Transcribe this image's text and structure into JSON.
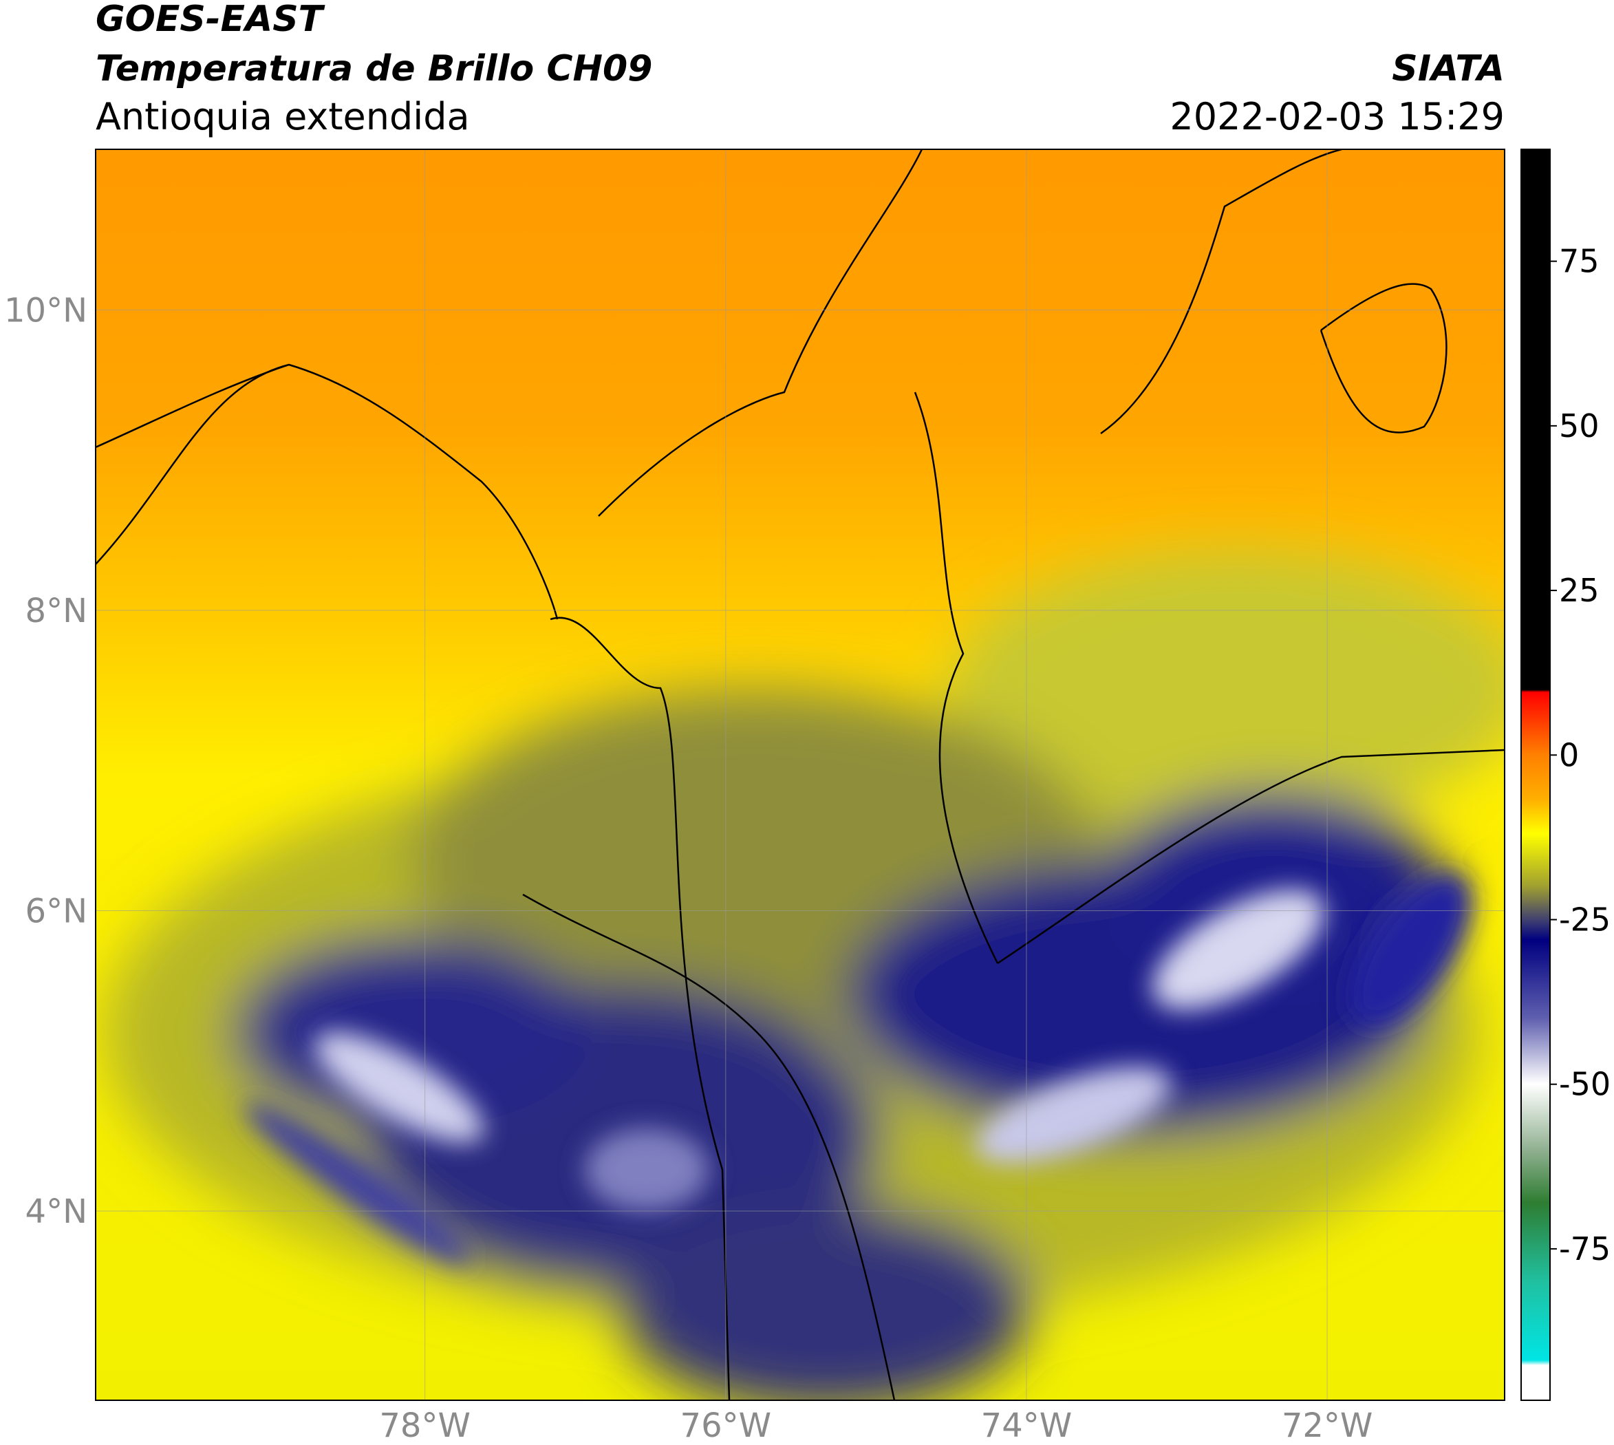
{
  "header": {
    "title": "GOES-EAST",
    "subtitle": "Temperatura de Brillo CH09",
    "region": "Antioquia extendida",
    "source": "SIATA",
    "datetime": "2022-02-03 15:29"
  },
  "map": {
    "xlim": [
      -80.19,
      -70.82
    ],
    "ylim": [
      2.74,
      11.07
    ],
    "yticks": [
      {
        "value": 10,
        "label": "10°N"
      },
      {
        "value": 8,
        "label": "8°N"
      },
      {
        "value": 6,
        "label": "6°N"
      },
      {
        "value": 4,
        "label": "4°N"
      }
    ],
    "xticks": [
      {
        "value": -78,
        "label": "78°W"
      },
      {
        "value": -76,
        "label": "76°W"
      },
      {
        "value": -74,
        "label": "74°W"
      },
      {
        "value": -72,
        "label": "72°W"
      }
    ]
  },
  "colorbar": {
    "range": [
      -98,
      92
    ],
    "ticks": [
      75,
      50,
      25,
      0,
      -25,
      -50,
      -75
    ]
  }
}
